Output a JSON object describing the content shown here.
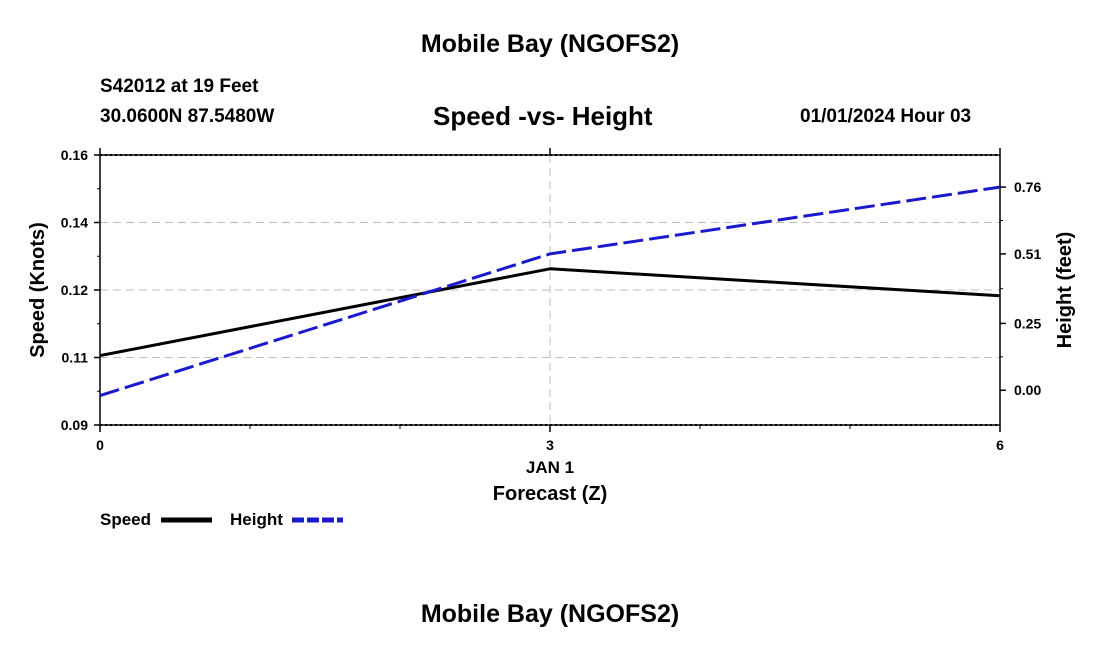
{
  "header": {
    "title": "Mobile Bay (NGOFS2)",
    "station": "S42012 at 19 Feet",
    "coords": "30.0600N  87.5480W",
    "subtitle": "Speed -vs- Height",
    "datetime": "01/01/2024 Hour 03"
  },
  "footer": {
    "title": "Mobile Bay (NGOFS2)"
  },
  "chart_data": {
    "type": "line",
    "title": "Speed -vs- Height",
    "xlabel": "Forecast (Z)",
    "xdate_label": "JAN 1",
    "ylabel_left": "Speed (Knots)",
    "ylabel_right": "Height (feet)",
    "x": [
      0,
      3,
      6
    ],
    "xlim": [
      0,
      6
    ],
    "xticks": [
      0,
      3,
      6
    ],
    "xtick_labels": [
      "0",
      "3",
      "6"
    ],
    "ylim_left": [
      0.09,
      0.16
    ],
    "yticks_left": [
      0.09,
      0.1075,
      0.125,
      0.1425,
      0.16
    ],
    "ytick_labels_left": [
      "0.09",
      "0.11",
      "0.12",
      "0.14",
      "0.16"
    ],
    "ylim_right": [
      -0.13,
      0.88
    ],
    "yticks_right": [
      0.0,
      0.25,
      0.51,
      0.76
    ],
    "ytick_labels_right": [
      "0.00",
      "0.25",
      "0.51",
      "0.76"
    ],
    "series": [
      {
        "name": "Speed",
        "axis": "left",
        "color": "#000000",
        "style": "solid",
        "values": [
          0.108,
          0.1305,
          0.1235
        ]
      },
      {
        "name": "Height",
        "axis": "right",
        "color": "#1a1acc",
        "style": "dashed",
        "values": [
          -0.02,
          0.51,
          0.76
        ]
      }
    ],
    "legend": {
      "placement": "bottom-left",
      "labels": [
        "Speed",
        "Height"
      ]
    },
    "grid": true
  }
}
